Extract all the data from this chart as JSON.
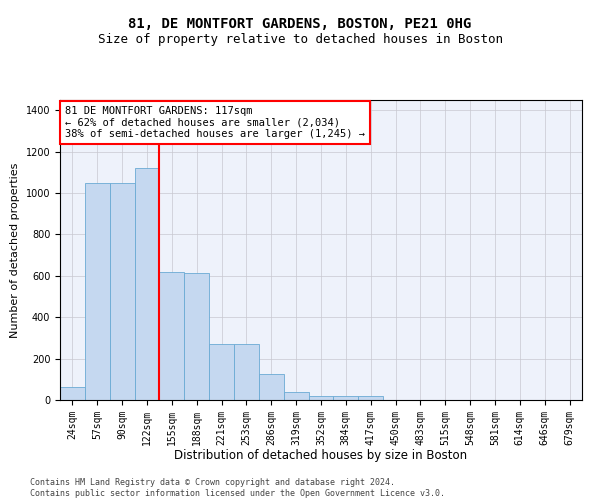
{
  "title1": "81, DE MONTFORT GARDENS, BOSTON, PE21 0HG",
  "title2": "Size of property relative to detached houses in Boston",
  "xlabel": "Distribution of detached houses by size in Boston",
  "ylabel": "Number of detached properties",
  "footnote": "Contains HM Land Registry data © Crown copyright and database right 2024.\nContains public sector information licensed under the Open Government Licence v3.0.",
  "bar_labels": [
    "24sqm",
    "57sqm",
    "90sqm",
    "122sqm",
    "155sqm",
    "188sqm",
    "221sqm",
    "253sqm",
    "286sqm",
    "319sqm",
    "352sqm",
    "384sqm",
    "417sqm",
    "450sqm",
    "483sqm",
    "515sqm",
    "548sqm",
    "581sqm",
    "614sqm",
    "646sqm",
    "679sqm"
  ],
  "bar_values": [
    62,
    1047,
    1047,
    1120,
    620,
    615,
    271,
    271,
    127,
    40,
    20,
    20,
    20,
    0,
    0,
    0,
    0,
    0,
    0,
    0,
    0
  ],
  "bar_color": "#c5d8f0",
  "bar_edgecolor": "#6aaad4",
  "highlight_bar_index": 3,
  "highlight_color": "red",
  "annotation_text": "81 DE MONTFORT GARDENS: 117sqm\n← 62% of detached houses are smaller (2,034)\n38% of semi-detached houses are larger (1,245) →",
  "annotation_box_color": "white",
  "annotation_box_edgecolor": "red",
  "ylim": [
    0,
    1450
  ],
  "yticks": [
    0,
    200,
    400,
    600,
    800,
    1000,
    1200,
    1400
  ],
  "bg_color": "#eef2fb",
  "grid_color": "#c8c8d0",
  "title1_fontsize": 10,
  "title2_fontsize": 9,
  "xlabel_fontsize": 8.5,
  "ylabel_fontsize": 8,
  "tick_fontsize": 7,
  "annotation_fontsize": 7.5,
  "footnote_fontsize": 6
}
